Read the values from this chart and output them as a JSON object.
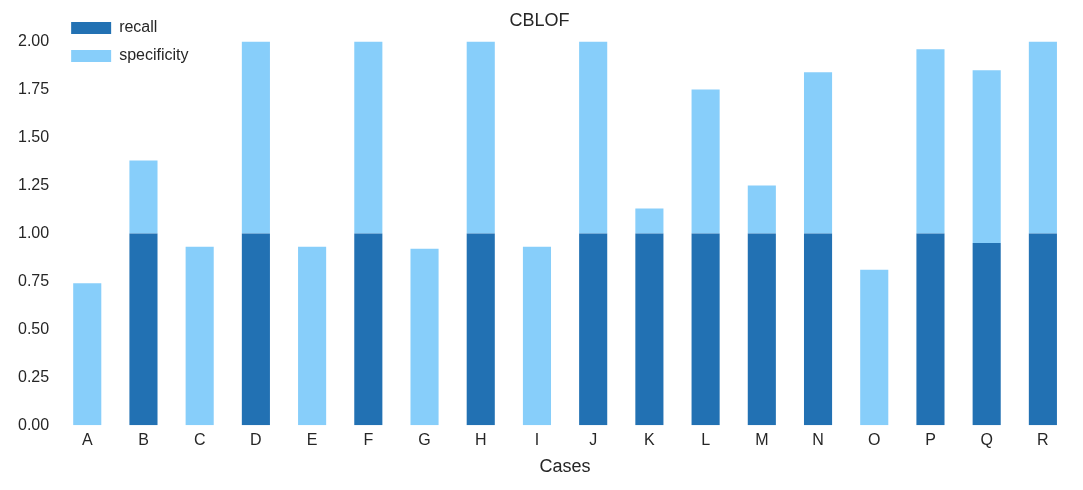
{
  "chart_data": {
    "type": "bar",
    "title": "CBLOF",
    "xlabel": "Cases",
    "categories": [
      "A",
      "B",
      "C",
      "D",
      "E",
      "F",
      "G",
      "H",
      "I",
      "J",
      "K",
      "L",
      "M",
      "N",
      "O",
      "P",
      "Q",
      "R"
    ],
    "stacked": true,
    "series": [
      {
        "name": "recall",
        "color": "#2271b3",
        "values": [
          0,
          1,
          0,
          1,
          0,
          1,
          0,
          1,
          0,
          1,
          1,
          1,
          1,
          1,
          0,
          1,
          0.95,
          1
        ]
      },
      {
        "name": "specificity",
        "color": "#87cefa",
        "values": [
          0.74,
          0.38,
          0.93,
          1,
          0.93,
          1,
          0.92,
          1,
          0.93,
          1,
          0.13,
          0.75,
          0.25,
          0.84,
          0.81,
          0.96,
          0.9,
          1
        ]
      }
    ],
    "ylim": [
      0,
      2
    ],
    "yticks": [
      {
        "value": 0,
        "label": "0.00"
      },
      {
        "value": 0.25,
        "label": "0.25"
      },
      {
        "value": 0.5,
        "label": "0.50"
      },
      {
        "value": 0.75,
        "label": "0.75"
      },
      {
        "value": 1,
        "label": "1.00"
      },
      {
        "value": 1.25,
        "label": "1.25"
      },
      {
        "value": 1.5,
        "label": "1.50"
      },
      {
        "value": 1.75,
        "label": "1.75"
      },
      {
        "value": 2,
        "label": "2.00"
      }
    ],
    "grid": false,
    "legend": "top left"
  }
}
